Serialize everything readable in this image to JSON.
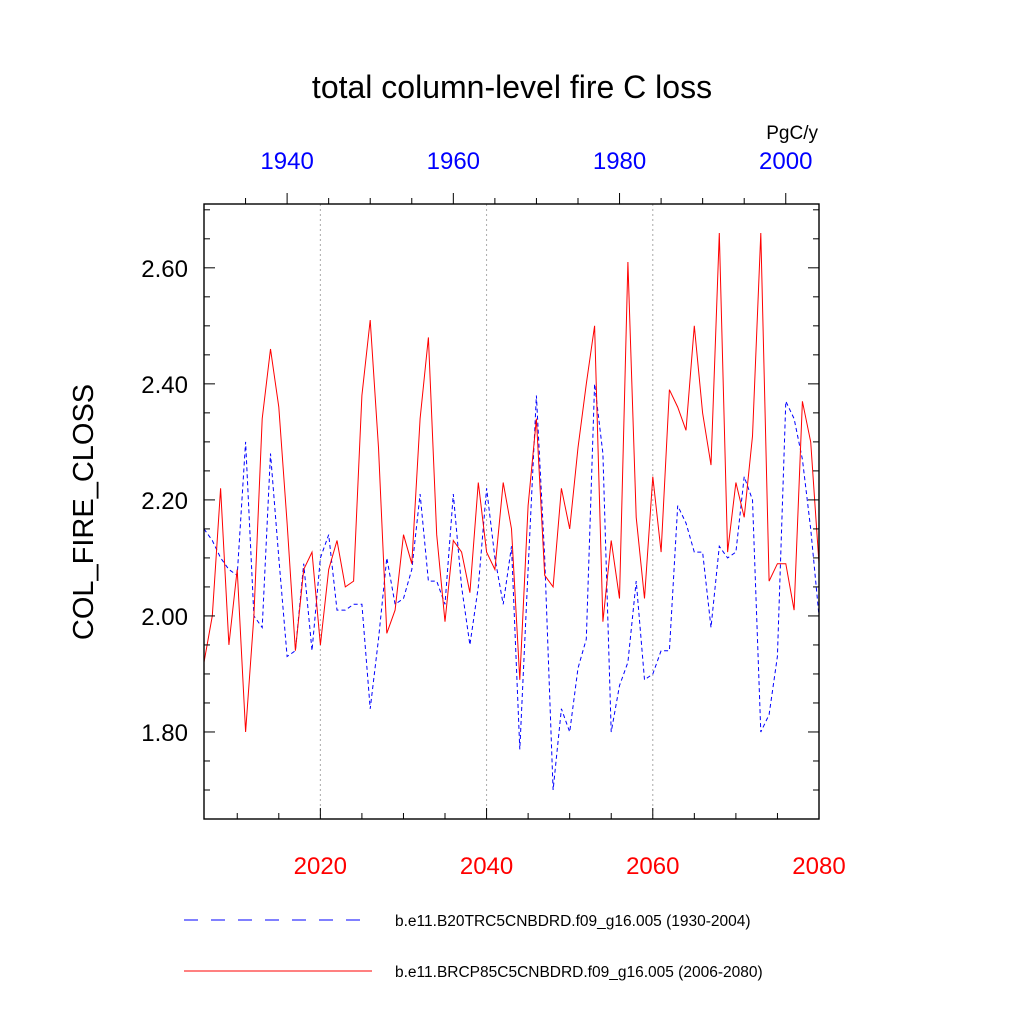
{
  "chart_data": {
    "type": "line",
    "title": "total column-level fire C loss",
    "ylabel": "COL_FIRE_CLOSS",
    "units": "PgC/y",
    "ylim": [
      1.65,
      2.71
    ],
    "yticks": [
      1.8,
      2.0,
      2.2,
      2.4,
      2.6
    ],
    "ytick_labels": [
      "1.80",
      "2.00",
      "2.20",
      "2.40",
      "2.60"
    ],
    "grid": "vertical dotted lines at labeled bottom-axis years",
    "legend_position": "bottom",
    "bottom_axis": {
      "label_color": "#ff0000",
      "xlim": [
        2006,
        2080
      ],
      "ticks": [
        2020,
        2040,
        2060,
        2080
      ],
      "tick_labels": [
        "2020",
        "2040",
        "2060",
        "2080"
      ]
    },
    "top_axis": {
      "label_color": "#0000ff",
      "xlim": [
        1930,
        2004
      ],
      "ticks": [
        1940,
        1960,
        1980,
        2000
      ],
      "tick_labels": [
        "1940",
        "1960",
        "1980",
        "2000"
      ]
    },
    "series": [
      {
        "name": "b.e11.B20TRC5CNBDRD.f09_g16.005 (1930-2004)",
        "axis": "top",
        "color": "#0000ff",
        "style": "dashed",
        "x_start": 1930,
        "values": [
          2.15,
          2.13,
          2.1,
          2.08,
          2.07,
          2.3,
          2.0,
          1.98,
          2.28,
          2.1,
          1.93,
          1.94,
          2.09,
          1.94,
          2.1,
          2.14,
          2.01,
          2.01,
          2.02,
          2.02,
          1.84,
          1.96,
          2.1,
          2.02,
          2.03,
          2.08,
          2.21,
          2.06,
          2.06,
          2.02,
          2.21,
          2.05,
          1.95,
          2.05,
          2.22,
          2.1,
          2.02,
          2.12,
          1.77,
          2.08,
          2.38,
          2.1,
          1.7,
          1.84,
          1.8,
          1.91,
          1.96,
          2.4,
          2.28,
          1.8,
          1.88,
          1.92,
          2.06,
          1.89,
          1.9,
          1.94,
          1.94,
          2.19,
          2.16,
          2.11,
          2.11,
          1.98,
          2.12,
          2.1,
          2.11,
          2.24,
          2.2,
          1.8,
          1.83,
          1.93,
          2.37,
          2.34,
          2.27,
          2.15,
          2.0
        ]
      },
      {
        "name": "b.e11.BRCP85C5CNBDRD.f09_g16.005 (2006-2080)",
        "axis": "bottom",
        "color": "#ff0000",
        "style": "solid",
        "x_start": 2006,
        "values": [
          1.92,
          2.0,
          2.22,
          1.95,
          2.08,
          1.8,
          2.0,
          2.34,
          2.46,
          2.36,
          2.16,
          1.94,
          2.08,
          2.11,
          1.95,
          2.08,
          2.13,
          2.05,
          2.06,
          2.38,
          2.51,
          2.29,
          1.97,
          2.01,
          2.14,
          2.09,
          2.34,
          2.48,
          2.14,
          1.99,
          2.13,
          2.11,
          2.04,
          2.23,
          2.11,
          2.08,
          2.23,
          2.15,
          1.89,
          2.19,
          2.34,
          2.07,
          2.05,
          2.22,
          2.15,
          2.29,
          2.4,
          2.5,
          1.99,
          2.13,
          2.03,
          2.61,
          2.17,
          2.03,
          2.24,
          2.11,
          2.39,
          2.36,
          2.32,
          2.5,
          2.35,
          2.26,
          2.66,
          2.11,
          2.23,
          2.17,
          2.31,
          2.66,
          2.06,
          2.09,
          2.09,
          2.01,
          2.37,
          2.3,
          2.09
        ]
      }
    ]
  }
}
